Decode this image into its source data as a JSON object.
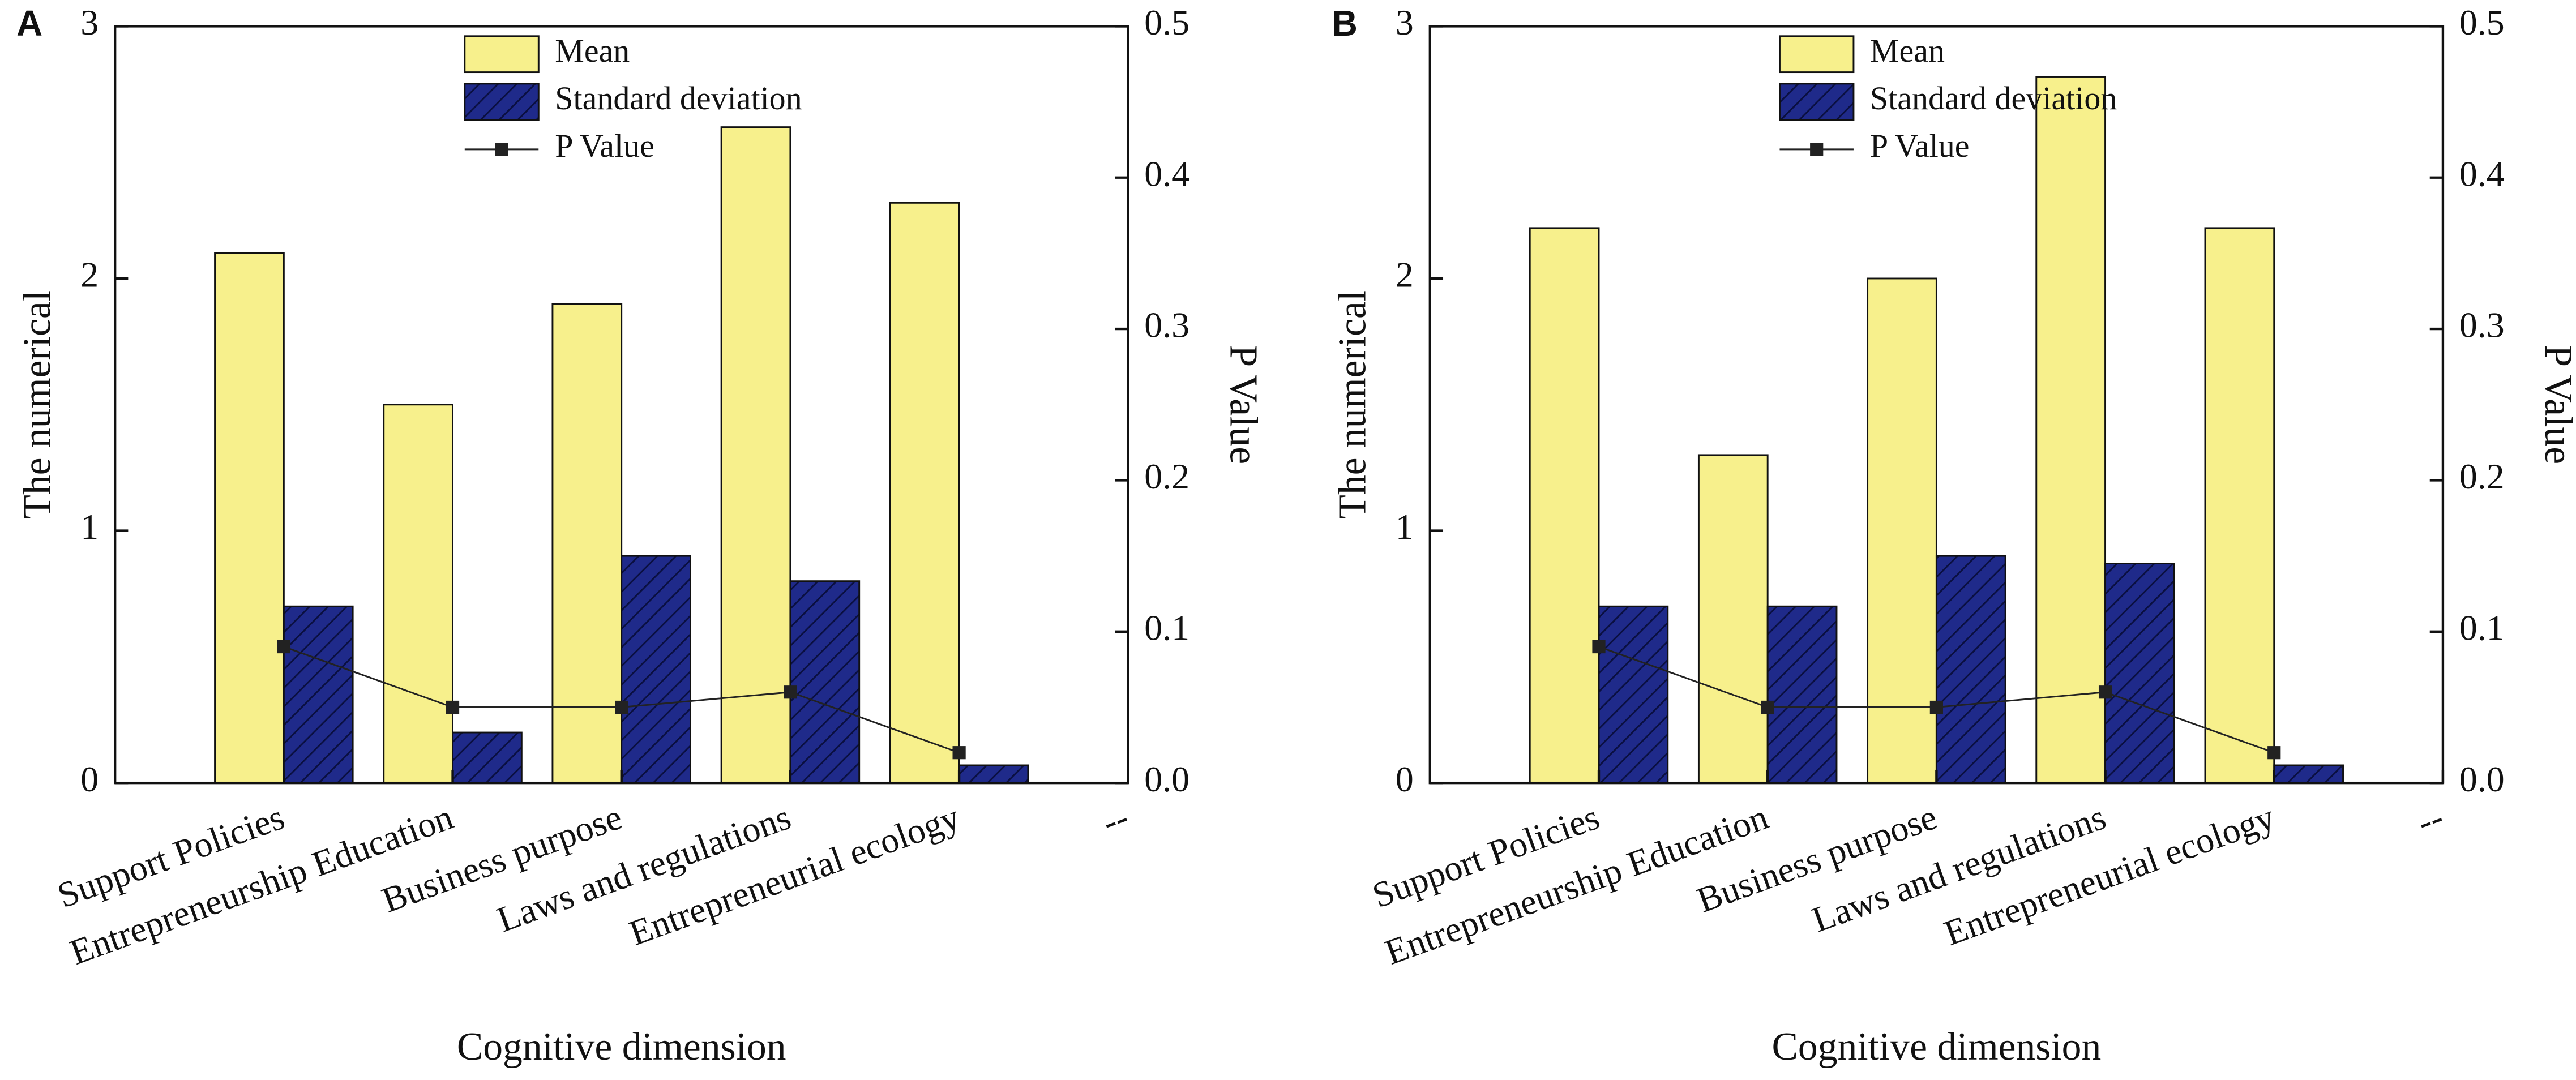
{
  "chart_data": [
    {
      "type": "bar",
      "panel": "A",
      "ylabel": "The numerical",
      "y2label": "P Value",
      "xlabel": "Cognitive dimension",
      "categories": [
        "Support Policies",
        "Entrepreneurship Education",
        "Business purpose",
        "Laws and regulations",
        "Entrepreneurial ecology",
        "--"
      ],
      "series": [
        {
          "name": "Mean",
          "color": "#f7f08c",
          "values": [
            2.1,
            1.5,
            1.9,
            2.6,
            2.3,
            null
          ]
        },
        {
          "name": "Standard deviation",
          "color": "#1f2a8a",
          "values": [
            0.7,
            0.2,
            0.9,
            0.8,
            0.07,
            null
          ]
        },
        {
          "name": "P Value",
          "color": "#222222",
          "axis": "y2",
          "values": [
            0.09,
            0.05,
            0.05,
            0.06,
            0.02,
            null
          ]
        }
      ],
      "ylim": [
        0,
        3
      ],
      "yticks": [
        0,
        1,
        2,
        3
      ],
      "y2lim": [
        0,
        0.5
      ],
      "y2ticks": [
        {
          "value": 0,
          "label": "0.0"
        },
        0.1,
        0.2,
        0.3,
        0.4,
        0.5
      ]
    },
    {
      "type": "bar",
      "panel": "B",
      "ylabel": "The numerical",
      "y2label": "P Value",
      "xlabel": "Cognitive dimension",
      "categories": [
        "Support Policies",
        "Entrepreneurship Education",
        "Business purpose",
        "Laws and regulations",
        "Entrepreneurial ecology",
        "--"
      ],
      "series": [
        {
          "name": "Mean",
          "color": "#f7f08c",
          "values": [
            2.2,
            1.3,
            2.0,
            2.8,
            2.2,
            null
          ]
        },
        {
          "name": "Standard deviation",
          "color": "#1f2a8a",
          "values": [
            0.7,
            0.7,
            0.9,
            0.87,
            0.07,
            null
          ]
        },
        {
          "name": "P Value",
          "color": "#222222",
          "axis": "y2",
          "values": [
            0.09,
            0.05,
            0.05,
            0.06,
            0.02,
            null
          ]
        }
      ],
      "ylim": [
        0,
        3
      ],
      "yticks": [
        0,
        1,
        2,
        3
      ],
      "y2lim": [
        0,
        0.5
      ],
      "y2ticks": [
        {
          "value": 0,
          "label": "0.0"
        },
        0.1,
        0.2,
        0.3,
        0.4,
        0.5
      ]
    }
  ]
}
